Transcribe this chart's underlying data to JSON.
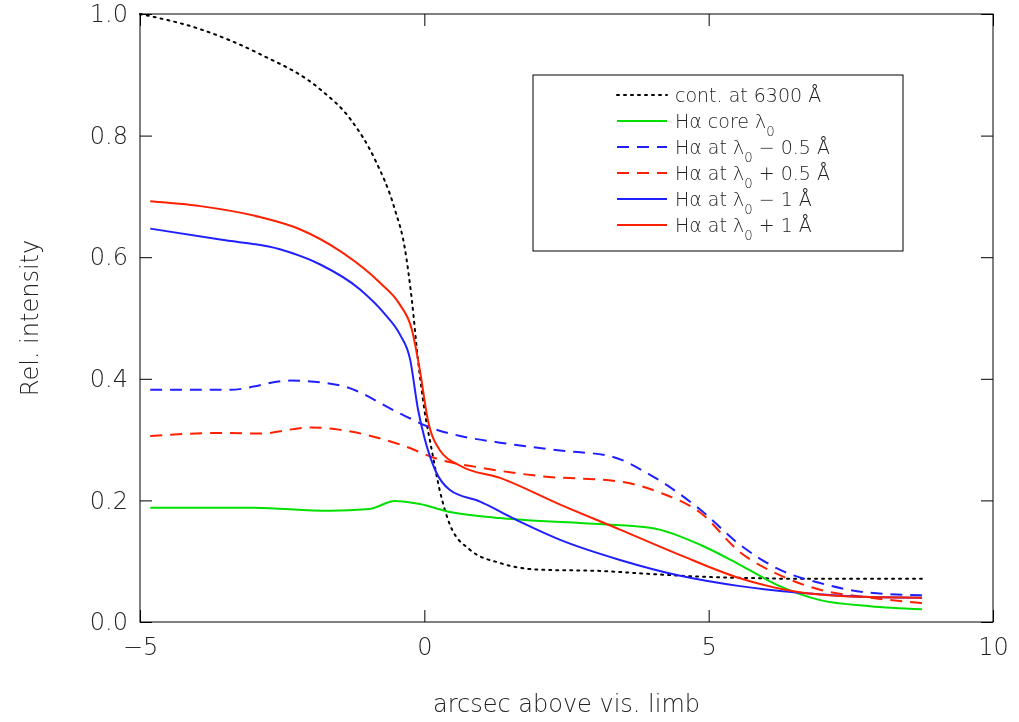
{
  "chart_data": {
    "type": "line",
    "xlabel": "arcsec above vis. limb",
    "ylabel": "Rel. intensity",
    "xlim": [
      -5,
      10
    ],
    "ylim": [
      0,
      1.0
    ],
    "xticks": [
      {
        "value": -5,
        "label": "−5"
      },
      0,
      5,
      10
    ],
    "yticks": [
      {
        "value": 0,
        "label": "0.0"
      },
      {
        "value": 0.2,
        "label": "0.2"
      },
      {
        "value": 0.4,
        "label": "0.4"
      },
      {
        "value": 0.6,
        "label": "0.6"
      },
      {
        "value": 0.8,
        "label": "0.8"
      },
      {
        "value": 1.0,
        "label": "1.0"
      }
    ],
    "grid": false,
    "legend": "top right",
    "series": [
      {
        "name": "cont. at 6300 Å",
        "color": "#000000",
        "line_style": "dotted",
        "x": [
          -5,
          -3.94,
          -2.89,
          -1.83,
          -1.3,
          -0.87,
          -0.52,
          -0.34,
          -0.22,
          -0.11,
          0,
          0.13,
          0.27,
          0.45,
          0.8,
          1.33,
          2.03,
          3.09,
          3.97,
          5,
          5.9,
          6.6,
          8.36,
          8.75
        ],
        "values": [
          1.0,
          0.975,
          0.934,
          0.876,
          0.827,
          0.761,
          0.679,
          0.613,
          0.53,
          0.43,
          0.35,
          0.283,
          0.217,
          0.16,
          0.119,
          0.097,
          0.086,
          0.084,
          0.079,
          0.074,
          0.072,
          0.071,
          0.071,
          0.071
        ]
      },
      {
        "name": "Hα core λ$_{0}$",
        "color": "#00e000",
        "line_style": "solid",
        "x": [
          -4.82,
          -3.07,
          -1.66,
          -0.96,
          -0.52,
          -0.08,
          0.45,
          1.33,
          3.09,
          3.97,
          4.85,
          5.55,
          6.25,
          6.96,
          7.84,
          8.75
        ],
        "values": [
          0.188,
          0.188,
          0.183,
          0.186,
          0.199,
          0.194,
          0.181,
          0.171,
          0.161,
          0.155,
          0.127,
          0.094,
          0.059,
          0.036,
          0.026,
          0.021
        ]
      },
      {
        "name": "Hα at λ$_{0}$ − 0.5 Å",
        "color": "#2020ff",
        "line_style": "dashed",
        "x": [
          -4.82,
          -3.42,
          -2.36,
          -1.48,
          -0.43,
          0.1,
          0.63,
          1.33,
          2.39,
          3.26,
          3.97,
          4.85,
          5.55,
          6.25,
          6.96,
          7.84,
          8.75
        ],
        "values": [
          0.382,
          0.382,
          0.397,
          0.389,
          0.343,
          0.32,
          0.306,
          0.295,
          0.282,
          0.273,
          0.242,
          0.185,
          0.127,
          0.086,
          0.064,
          0.048,
          0.044
        ]
      },
      {
        "name": "Hα at λ$_{0}$ + 0.5 Å",
        "color": "#ff2000",
        "line_style": "dashed",
        "x": [
          -4.82,
          -3.59,
          -2.89,
          -2.01,
          -1.48,
          -0.43,
          0.27,
          0.98,
          2.03,
          3.44,
          4.14,
          4.85,
          5.55,
          6.25,
          6.96,
          7.84,
          8.75
        ],
        "values": [
          0.306,
          0.311,
          0.31,
          0.32,
          0.316,
          0.292,
          0.267,
          0.254,
          0.24,
          0.231,
          0.213,
          0.18,
          0.115,
          0.077,
          0.053,
          0.04,
          0.031
        ]
      },
      {
        "name": "Hα at λ$_{0}$ − 1 Å",
        "color": "#2020ff",
        "line_style": "solid",
        "x": [
          -4.82,
          -3.59,
          -2.54,
          -1.83,
          -1.13,
          -0.69,
          -0.43,
          -0.25,
          -0.11,
          0.01,
          0.19,
          0.45,
          0.98,
          1.68,
          2.39,
          3.44,
          4.5,
          5.55,
          6.6,
          7.84,
          8.75
        ],
        "values": [
          0.647,
          0.629,
          0.613,
          0.588,
          0.547,
          0.506,
          0.473,
          0.432,
          0.349,
          0.3,
          0.25,
          0.217,
          0.198,
          0.165,
          0.135,
          0.102,
          0.076,
          0.059,
          0.048,
          0.041,
          0.04
        ]
      },
      {
        "name": "Hα at λ$_{0}$ + 1 Å",
        "color": "#ff2000",
        "line_style": "solid",
        "x": [
          -4.82,
          -3.94,
          -2.89,
          -2.19,
          -1.48,
          -0.78,
          -0.43,
          -0.22,
          -0.08,
          0.06,
          0.27,
          0.63,
          1.33,
          2.39,
          3.44,
          4.5,
          5.55,
          6.6,
          7.84,
          8.75
        ],
        "values": [
          0.692,
          0.684,
          0.666,
          0.646,
          0.61,
          0.558,
          0.522,
          0.481,
          0.415,
          0.333,
          0.283,
          0.257,
          0.237,
          0.193,
          0.152,
          0.11,
          0.072,
          0.049,
          0.041,
          0.04
        ]
      }
    ]
  }
}
